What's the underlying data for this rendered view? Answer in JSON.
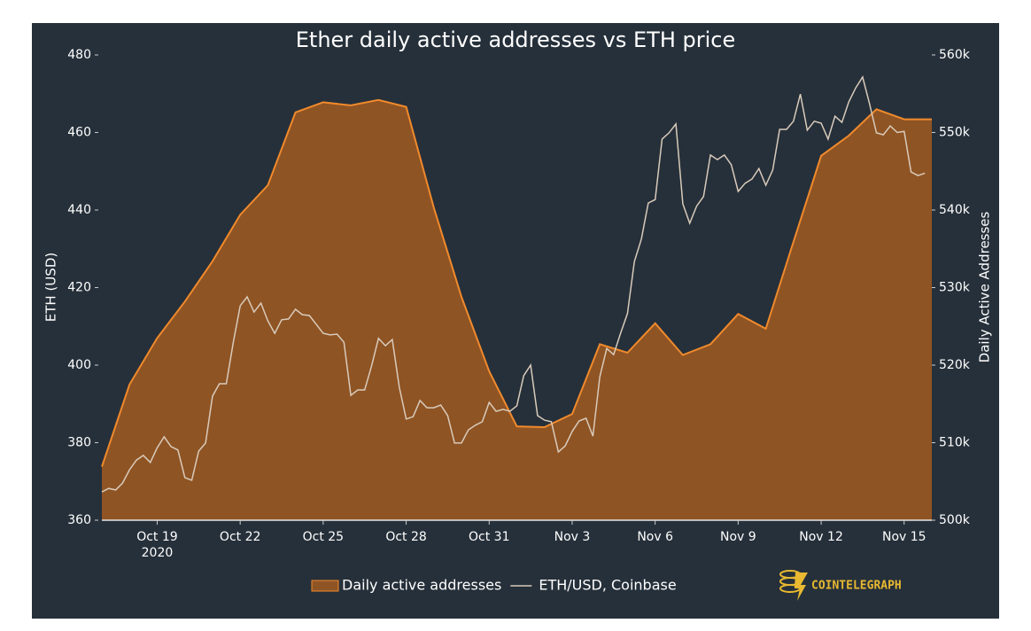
{
  "chart_data": {
    "type": "line",
    "title": "Ether daily active addresses vs ETH price",
    "y_label": "ETH (USD)",
    "y2_label": "Daily Active Addresses",
    "brand": "COINTELEGRAPH",
    "x_year_label": "2020",
    "xlim": [
      "2020-10-17T00:00",
      "2020-11-16T00:00"
    ],
    "xticks": [
      {
        "value": "2020-10-19T00:00",
        "label": "Oct 19"
      },
      {
        "value": "2020-10-22T00:00",
        "label": "Oct 22"
      },
      {
        "value": "2020-10-25T00:00",
        "label": "Oct 25"
      },
      {
        "value": "2020-10-28T00:00",
        "label": "Oct 28"
      },
      {
        "value": "2020-10-31T00:00",
        "label": "Oct 31"
      },
      {
        "value": "2020-11-03T00:00",
        "label": "Nov 3"
      },
      {
        "value": "2020-11-06T00:00",
        "label": "Nov 6"
      },
      {
        "value": "2020-11-09T00:00",
        "label": "Nov 9"
      },
      {
        "value": "2020-11-12T00:00",
        "label": "Nov 12"
      },
      {
        "value": "2020-11-15T00:00",
        "label": "Nov 15"
      }
    ],
    "ylim": [
      360,
      480
    ],
    "yticks": [
      360,
      380,
      400,
      420,
      440,
      460,
      480
    ],
    "y2lim": [
      500000,
      560000
    ],
    "y2ticks": [
      {
        "value": 500000,
        "label": "500k"
      },
      {
        "value": 510000,
        "label": "510k"
      },
      {
        "value": 520000,
        "label": "520k"
      },
      {
        "value": 530000,
        "label": "530k"
      },
      {
        "value": 540000,
        "label": "540k"
      },
      {
        "value": 550000,
        "label": "550k"
      },
      {
        "value": 560000,
        "label": "560k"
      }
    ],
    "grid": false,
    "series": [
      {
        "name": "Daily active addresses",
        "kind": "area",
        "axis": "y2",
        "color": "#f08a2c",
        "fill": "#8f5424",
        "x": [
          "2020-10-17T00:00",
          "2020-10-18T00:00",
          "2020-10-19T00:00",
          "2020-10-20T00:00",
          "2020-10-21T00:00",
          "2020-10-22T00:00",
          "2020-10-23T00:00",
          "2020-10-24T00:00",
          "2020-10-25T00:00",
          "2020-10-26T00:00",
          "2020-10-27T00:00",
          "2020-10-28T00:00",
          "2020-10-29T00:00",
          "2020-10-30T00:00",
          "2020-10-31T00:00",
          "2020-11-01T00:00",
          "2020-11-02T00:00",
          "2020-11-03T00:00",
          "2020-11-04T00:00",
          "2020-11-05T00:00",
          "2020-11-06T00:00",
          "2020-11-07T00:00",
          "2020-11-08T00:00",
          "2020-11-09T00:00",
          "2020-11-10T00:00",
          "2020-11-11T00:00",
          "2020-11-12T00:00",
          "2020-11-13T00:00",
          "2020-11-14T00:00",
          "2020-11-15T00:00",
          "2020-11-16T00:00"
        ],
        "values": [
          506900,
          517500,
          523500,
          528200,
          533400,
          539400,
          543200,
          552600,
          553900,
          553500,
          554200,
          553300,
          540300,
          528800,
          519200,
          512100,
          512000,
          513700,
          522700,
          521600,
          525400,
          521300,
          522700,
          526600,
          524700,
          535900,
          547000,
          549600,
          553000,
          551700,
          551700
        ]
      },
      {
        "name": "ETH/USD, Coinbase",
        "kind": "line",
        "axis": "y",
        "color": "#d9cbbb",
        "x": [
          "2020-10-17T00:00",
          "2020-10-17T06:00",
          "2020-10-17T12:00",
          "2020-10-17T18:00",
          "2020-10-18T00:00",
          "2020-10-18T06:00",
          "2020-10-18T12:00",
          "2020-10-18T18:00",
          "2020-10-19T00:00",
          "2020-10-19T06:00",
          "2020-10-19T12:00",
          "2020-10-19T18:00",
          "2020-10-20T00:00",
          "2020-10-20T06:00",
          "2020-10-20T12:00",
          "2020-10-20T18:00",
          "2020-10-21T00:00",
          "2020-10-21T06:00",
          "2020-10-21T12:00",
          "2020-10-21T18:00",
          "2020-10-22T00:00",
          "2020-10-22T06:00",
          "2020-10-22T12:00",
          "2020-10-22T18:00",
          "2020-10-23T00:00",
          "2020-10-23T06:00",
          "2020-10-23T12:00",
          "2020-10-23T18:00",
          "2020-10-24T00:00",
          "2020-10-24T06:00",
          "2020-10-24T12:00",
          "2020-10-24T18:00",
          "2020-10-25T00:00",
          "2020-10-25T06:00",
          "2020-10-25T12:00",
          "2020-10-25T18:00",
          "2020-10-26T00:00",
          "2020-10-26T06:00",
          "2020-10-26T12:00",
          "2020-10-26T18:00",
          "2020-10-27T00:00",
          "2020-10-27T06:00",
          "2020-10-27T12:00",
          "2020-10-27T18:00",
          "2020-10-28T00:00",
          "2020-10-28T06:00",
          "2020-10-28T12:00",
          "2020-10-28T18:00",
          "2020-10-29T00:00",
          "2020-10-29T06:00",
          "2020-10-29T12:00",
          "2020-10-29T18:00",
          "2020-10-30T00:00",
          "2020-10-30T06:00",
          "2020-10-30T12:00",
          "2020-10-30T18:00",
          "2020-10-31T00:00",
          "2020-10-31T06:00",
          "2020-10-31T12:00",
          "2020-10-31T18:00",
          "2020-11-01T00:00",
          "2020-11-01T06:00",
          "2020-11-01T12:00",
          "2020-11-01T18:00",
          "2020-11-02T00:00",
          "2020-11-02T06:00",
          "2020-11-02T12:00",
          "2020-11-02T18:00",
          "2020-11-03T00:00",
          "2020-11-03T06:00",
          "2020-11-03T12:00",
          "2020-11-03T18:00",
          "2020-11-04T00:00",
          "2020-11-04T06:00",
          "2020-11-04T12:00",
          "2020-11-04T18:00",
          "2020-11-05T00:00",
          "2020-11-05T06:00",
          "2020-11-05T12:00",
          "2020-11-05T18:00",
          "2020-11-06T00:00",
          "2020-11-06T06:00",
          "2020-11-06T12:00",
          "2020-11-06T18:00",
          "2020-11-07T00:00",
          "2020-11-07T06:00",
          "2020-11-07T12:00",
          "2020-11-07T18:00",
          "2020-11-08T00:00",
          "2020-11-08T06:00",
          "2020-11-08T12:00",
          "2020-11-08T18:00",
          "2020-11-09T00:00",
          "2020-11-09T06:00",
          "2020-11-09T12:00",
          "2020-11-09T18:00",
          "2020-11-10T00:00",
          "2020-11-10T06:00",
          "2020-11-10T12:00",
          "2020-11-10T18:00",
          "2020-11-11T00:00",
          "2020-11-11T06:00",
          "2020-11-11T12:00",
          "2020-11-11T18:00",
          "2020-11-12T00:00",
          "2020-11-12T06:00",
          "2020-11-12T12:00",
          "2020-11-12T18:00",
          "2020-11-13T00:00",
          "2020-11-13T06:00",
          "2020-11-13T12:00",
          "2020-11-13T18:00",
          "2020-11-14T00:00",
          "2020-11-14T06:00",
          "2020-11-14T12:00",
          "2020-11-14T18:00",
          "2020-11-15T00:00",
          "2020-11-15T06:00",
          "2020-11-15T12:00",
          "2020-11-15T18:00"
        ],
        "values": [
          367.3,
          368.2,
          367.8,
          369.6,
          373.0,
          375.5,
          376.7,
          374.9,
          378.7,
          381.5,
          379.0,
          378.1,
          371.0,
          370.3,
          377.8,
          379.9,
          392.0,
          395.2,
          395.2,
          405.9,
          415.3,
          417.6,
          413.7,
          416.0,
          411.4,
          408.2,
          411.7,
          411.9,
          414.4,
          413.0,
          412.8,
          410.5,
          408.2,
          407.8,
          408.0,
          405.9,
          392.2,
          393.6,
          393.6,
          399.8,
          406.9,
          405.0,
          406.6,
          394.3,
          386.1,
          386.7,
          390.9,
          389.0,
          389.0,
          389.7,
          387.0,
          379.9,
          379.9,
          383.3,
          384.5,
          385.4,
          390.4,
          388.1,
          388.6,
          388.1,
          389.5,
          397.3,
          400.0,
          387.0,
          385.8,
          385.4,
          377.6,
          379.2,
          382.9,
          385.6,
          386.3,
          381.7,
          397.0,
          404.3,
          402.7,
          408.2,
          413.3,
          426.7,
          432.5,
          441.8,
          442.7,
          458.3,
          459.9,
          462.2,
          441.6,
          436.6,
          441.0,
          443.5,
          454.2,
          453.0,
          454.2,
          451.7,
          444.8,
          446.9,
          448.0,
          450.7,
          446.4,
          450.3,
          460.8,
          460.8,
          462.9,
          469.9,
          460.6,
          462.9,
          462.4,
          458.3,
          464.2,
          462.6,
          467.9,
          471.5,
          474.3,
          467.4,
          459.9,
          459.4,
          461.7,
          460.0,
          460.3,
          449.8,
          448.9,
          449.5
        ]
      }
    ]
  }
}
